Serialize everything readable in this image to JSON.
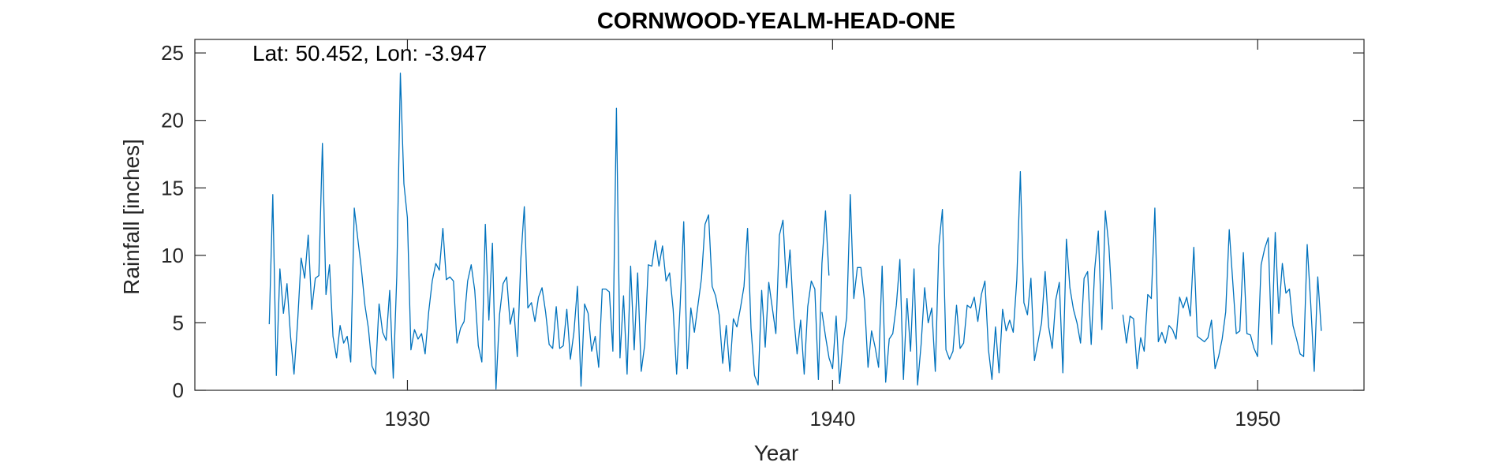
{
  "chart_data": {
    "type": "line",
    "title": "CORNWOOD-YEALM-HEAD-ONE",
    "annotation": "Lat: 50.452, Lon: -3.947",
    "xlabel": "Year",
    "ylabel": "Rainfall [inches]",
    "xlim": [
      1925,
      1952.5
    ],
    "ylim": [
      0,
      26
    ],
    "xticks": [
      1930,
      1940,
      1950
    ],
    "yticks": [
      0,
      5,
      10,
      15,
      20,
      25
    ],
    "grid": false,
    "line_color": "#0072BD",
    "segments": [
      {
        "x_start": 1926.75,
        "step": 0.08333,
        "values": [
          4.9,
          14.5,
          1.1,
          9.0,
          5.7,
          7.9,
          4.0,
          1.2,
          5.0,
          9.8,
          8.3,
          11.5,
          6.0,
          8.3,
          8.5,
          18.3,
          7.1,
          9.3,
          4.0,
          2.4,
          4.8,
          3.5,
          4.0,
          2.1,
          13.5,
          11.2,
          9.0,
          6.3,
          4.6,
          1.8,
          1.2,
          6.4,
          4.3,
          3.7,
          7.4,
          0.9,
          8.5,
          23.5,
          15.3,
          12.8,
          3.0,
          4.5,
          3.8,
          4.2,
          2.7,
          5.8,
          8.1,
          9.4,
          8.9,
          12.0,
          8.2,
          8.4,
          8.1,
          3.5,
          4.6,
          5.1,
          8.1,
          9.3,
          7.4,
          3.3,
          2.1,
          12.3,
          5.2,
          10.9,
          0.1,
          5.6,
          7.9,
          8.4,
          4.9,
          6.1,
          2.5,
          9.7,
          13.6,
          6.1,
          6.5,
          5.1,
          6.9,
          7.6,
          5.8,
          3.4,
          3.1,
          6.2,
          3.1,
          3.3,
          6.0,
          2.3,
          4.3,
          7.7,
          0.3,
          6.4,
          5.7,
          2.9,
          4.0,
          1.7,
          7.5,
          7.5,
          7.3,
          2.9,
          20.9,
          2.4,
          7.0,
          1.2,
          9.2,
          3.0,
          8.7,
          1.4,
          3.4,
          9.3,
          9.2,
          11.1,
          9.2,
          10.7,
          8.1,
          8.7,
          6.0,
          1.2,
          6.3,
          12.5,
          1.6,
          6.1,
          4.3,
          6.3,
          8.3,
          12.3,
          13.0,
          7.7,
          7.0,
          5.6,
          2.0,
          4.8,
          1.4,
          5.3,
          4.7,
          6.1,
          7.7,
          12.0,
          4.6,
          1.1,
          0.4,
          7.4,
          3.2,
          8.0,
          6.1,
          4.2,
          11.5,
          12.6,
          7.6,
          10.4,
          5.6,
          2.7,
          5.2,
          1.2,
          6.2,
          8.1,
          7.5,
          0.8,
          9.4,
          13.3,
          8.5
        ]
      },
      {
        "x_start": 1939.75,
        "step": 0.08333,
        "values": [
          5.8,
          4.0,
          2.4,
          1.6,
          5.5,
          0.5,
          3.6,
          5.4,
          14.5,
          6.8,
          9.1,
          9.1,
          6.7,
          1.7,
          4.4,
          3.2,
          1.7,
          9.2,
          0.6,
          3.8,
          4.2,
          6.3,
          9.7,
          0.8,
          6.8,
          2.9,
          9.0,
          0.4,
          3.4,
          7.6,
          5.0,
          6.1,
          1.4,
          10.7,
          13.4,
          3.0,
          2.3,
          2.9,
          6.3,
          3.1,
          3.5,
          6.3,
          6.1,
          6.9,
          5.1,
          7.1,
          8.1,
          3.0,
          0.8,
          4.7,
          1.3,
          6.0,
          4.4,
          5.2,
          4.3,
          8.2,
          16.2,
          6.5,
          5.6,
          8.3,
          2.2,
          3.6,
          5.0,
          8.8,
          4.7,
          3.1,
          6.7,
          8.0,
          1.3,
          11.2,
          7.6,
          6.0,
          5.0,
          3.5,
          8.3,
          8.8,
          3.4,
          9.0,
          11.8,
          4.5,
          13.3,
          10.7,
          6.0
        ]
      },
      {
        "x_start": 1946.83,
        "step": 0.08333,
        "values": [
          5.6,
          3.5,
          5.5,
          5.3,
          1.6,
          3.9,
          2.9,
          7.1,
          6.8,
          13.5,
          3.6,
          4.3,
          3.5,
          4.8,
          4.5,
          3.8,
          6.9,
          6.1,
          6.9,
          5.5,
          10.6,
          4.0,
          3.8,
          3.6,
          3.9,
          5.2,
          1.6,
          2.5,
          3.8,
          5.8,
          11.9,
          8.0,
          4.2,
          4.4,
          10.2,
          4.2,
          4.1,
          3.1,
          2.5,
          9.3,
          10.5,
          11.3,
          3.4,
          11.7,
          5.7,
          9.4,
          7.2,
          7.5,
          4.8,
          3.8,
          2.7,
          2.5,
          10.8,
          6.5,
          1.4,
          8.4,
          4.4
        ]
      }
    ]
  }
}
